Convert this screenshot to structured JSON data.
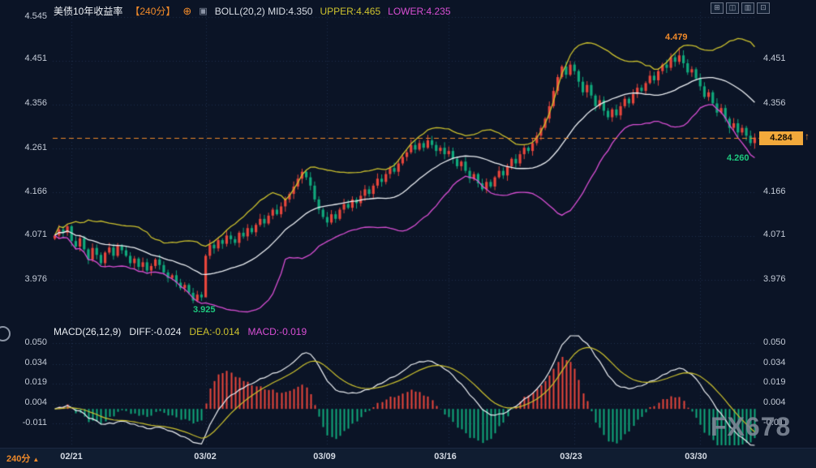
{
  "header": {
    "title": "美债10年收益率",
    "interval_tag": "【240分】",
    "boll_label": "BOLL(20,2) MID:4.350",
    "upper_label": "UPPER:4.465",
    "lower_label": "LOWER:4.235"
  },
  "icons": {
    "plus_circle": "⊕",
    "indicator": "▣",
    "price_arrow": "↑",
    "circle_tool": "◯",
    "interval_arrow": "▲"
  },
  "toolbar": {
    "icons": [
      {
        "name": "grid-layout-icon",
        "glyph": "⊞"
      },
      {
        "name": "chart-type-icon",
        "glyph": "◫"
      },
      {
        "name": "indicator-panel-icon",
        "glyph": "▥"
      },
      {
        "name": "fullscreen-icon",
        "glyph": "⊡"
      }
    ]
  },
  "axis": {
    "left": [
      "4.545",
      "4.451",
      "4.356",
      "4.261",
      "4.166",
      "4.071",
      "3.976"
    ],
    "right": [
      "4.451",
      "4.356",
      "4.166",
      "4.071",
      "3.976"
    ]
  },
  "tag": {
    "value": "4.284"
  },
  "annotations": {
    "high": "4.479",
    "last_low": "4.260",
    "low": "3.925"
  },
  "macd": {
    "name": "MACD(26,12,9)",
    "diff": "DIFF:-0.024",
    "dea": "DEA:-0.014",
    "macd": "MACD:-0.019",
    "axis": [
      "0.050",
      "0.034",
      "0.019",
      "0.004",
      "-0.011"
    ]
  },
  "bottom": {
    "interval": "240分",
    "dates": [
      "02/21",
      "03/02",
      "03/09",
      "03/16",
      "03/23",
      "03/30"
    ]
  },
  "watermark": "FX678",
  "colors": {
    "background": "#0b1426",
    "up": "#e8463c",
    "down": "#10a97c",
    "boll_upper": "#cdc22e",
    "boll_mid": "#eef1f5",
    "boll_lower": "#d94fd4",
    "macd_diff": "#eef1f5",
    "macd_dea": "#cdc22e",
    "hist_pos": "#e8463c",
    "hist_neg": "#10a97c",
    "grid": "#20304c",
    "price_line": "#f08a2a",
    "tag_bg": "#f2a93b",
    "green_label": "#1ec97e",
    "axis_text": "#c3cad6",
    "watermark": "#7e8796"
  },
  "chart_data": [
    {
      "type": "candlestick",
      "title": "美债10年收益率 240分",
      "interval_minutes": 240,
      "x_tick_labels": [
        "02/21",
        "03/02",
        "03/09",
        "03/16",
        "03/23",
        "03/30"
      ],
      "x_tick_indices": [
        4,
        36,
        65,
        94,
        124,
        154
      ],
      "bar_count": 168,
      "ylim": [
        3.925,
        4.545
      ],
      "y_ticks": [
        4.545,
        4.451,
        4.356,
        4.261,
        4.166,
        4.071,
        3.976
      ],
      "first_open": 4.065,
      "closes": [
        4.072,
        4.085,
        4.078,
        4.092,
        4.06,
        4.048,
        4.066,
        4.042,
        4.02,
        4.045,
        4.03,
        4.012,
        4.035,
        4.046,
        4.028,
        4.05,
        4.04,
        4.028,
        4.012,
        4.022,
        4.004,
        4.014,
        3.996,
        4.006,
        4.02,
        4.008,
        3.992,
        3.98,
        3.986,
        3.97,
        3.958,
        3.965,
        3.948,
        3.931,
        3.944,
        3.938,
        4.028,
        4.052,
        4.044,
        4.062,
        4.054,
        4.072,
        4.064,
        4.056,
        4.078,
        4.07,
        4.088,
        4.079,
        4.095,
        4.108,
        4.098,
        4.115,
        4.128,
        4.118,
        4.135,
        4.15,
        4.162,
        4.178,
        4.195,
        4.21,
        4.198,
        4.18,
        4.15,
        4.128,
        4.112,
        4.1,
        4.118,
        4.108,
        4.128,
        4.14,
        4.132,
        4.15,
        4.142,
        4.158,
        4.172,
        4.162,
        4.18,
        4.195,
        4.188,
        4.205,
        4.218,
        4.21,
        4.228,
        4.242,
        4.252,
        4.268,
        4.258,
        4.272,
        4.262,
        4.278,
        4.268,
        4.255,
        4.262,
        4.248,
        4.255,
        4.238,
        4.222,
        4.232,
        4.212,
        4.195,
        4.205,
        4.185,
        4.172,
        4.188,
        4.178,
        4.198,
        4.212,
        4.202,
        4.222,
        4.238,
        4.228,
        4.248,
        4.262,
        4.255,
        4.272,
        4.288,
        4.305,
        4.325,
        4.352,
        4.385,
        4.415,
        4.438,
        4.42,
        4.442,
        4.428,
        4.405,
        4.382,
        4.398,
        4.375,
        4.352,
        4.365,
        4.342,
        4.328,
        4.345,
        4.332,
        4.352,
        4.368,
        4.358,
        4.378,
        4.392,
        4.385,
        4.402,
        4.418,
        4.408,
        4.428,
        4.442,
        4.435,
        4.458,
        4.448,
        4.462,
        4.445,
        4.425,
        4.432,
        4.412,
        4.395,
        4.372,
        4.382,
        4.358,
        4.338,
        4.348,
        4.325,
        4.305,
        4.315,
        4.295,
        4.305,
        4.288,
        4.272,
        4.284
      ],
      "key_points": {
        "33": {
          "low": 3.925
        },
        "36": {
          "low": 3.942
        },
        "149": {
          "high": 4.479
        },
        "167": {
          "low": 4.26
        }
      },
      "last_price": 4.284,
      "period_high": 4.479,
      "period_low": 3.925,
      "indicators": {
        "boll": {
          "period": 20,
          "mult": 2,
          "mid": 4.35,
          "upper": 4.465,
          "lower": 4.235
        }
      }
    },
    {
      "type": "bar",
      "name": "MACD",
      "params": {
        "slow": 26,
        "fast": 12,
        "signal": 9
      },
      "y_ticks": [
        0.05,
        0.034,
        0.019,
        0.004,
        -0.011
      ],
      "ylim": [
        -0.027,
        0.055
      ],
      "last": {
        "diff": -0.024,
        "dea": -0.014,
        "macd": -0.019
      },
      "legend_position": "top-left",
      "grid": true
    }
  ]
}
